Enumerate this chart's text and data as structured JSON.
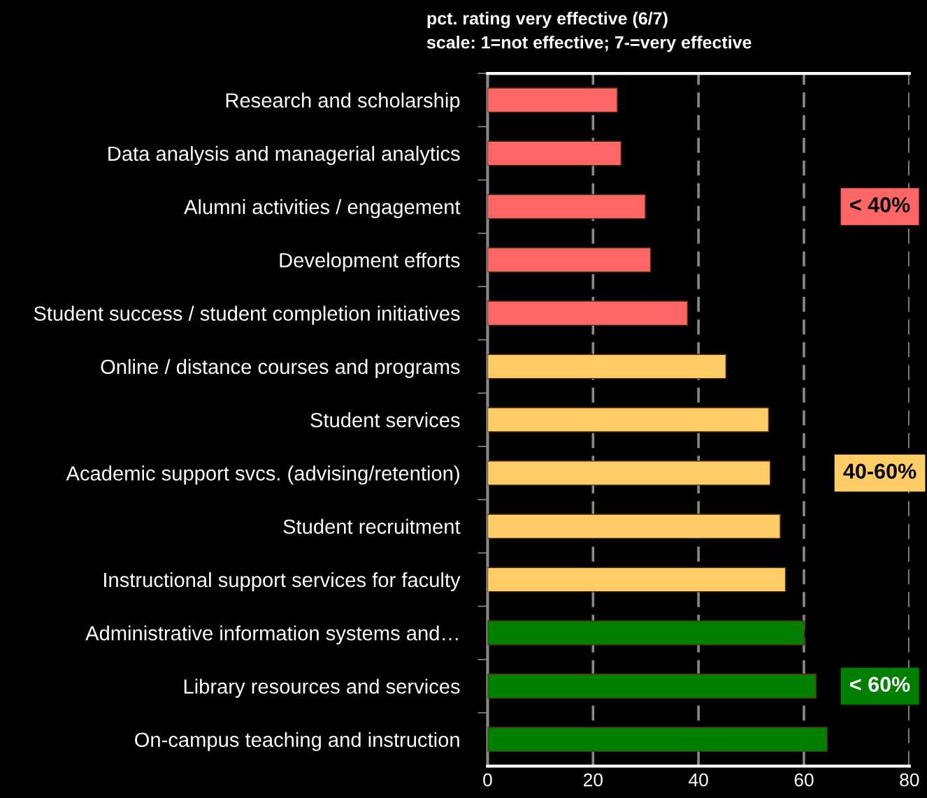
{
  "chart_data": {
    "type": "bar",
    "orientation": "horizontal",
    "title": "pct. rating very effective (6/7)",
    "subtitle": "scale: 1=not effective; 7-=very effective",
    "categories": [
      "Research and scholarship",
      "Data analysis and managerial analytics",
      "Alumni activities / engagement",
      "Development efforts",
      "Student success / student completion initiatives",
      "Online / distance courses and programs",
      "Student services",
      "Academic support svcs. (advising/retention)",
      "Student recruitment",
      "Instructional support services for faculty",
      "Administrative information systems and…",
      "Library resources and services",
      "On-campus teaching and instruction"
    ],
    "values": [
      24.6,
      25.3,
      29.9,
      30.9,
      37.9,
      45.2,
      53.3,
      53.6,
      55.5,
      56.5,
      60.1,
      62.3,
      64.4
    ],
    "colors": [
      "#ff6666",
      "#ff6666",
      "#ff6666",
      "#ff6666",
      "#ff6666",
      "#ffcc66",
      "#ffcc66",
      "#ffcc66",
      "#ffcc66",
      "#ffcc66",
      "#008000",
      "#008000",
      "#008000"
    ],
    "xlim": [
      0,
      80
    ],
    "xticks": [
      0,
      20,
      40,
      60,
      80
    ],
    "grid": "x",
    "annotations": [
      "< 40%",
      "40-60%",
      "< 60%"
    ]
  }
}
